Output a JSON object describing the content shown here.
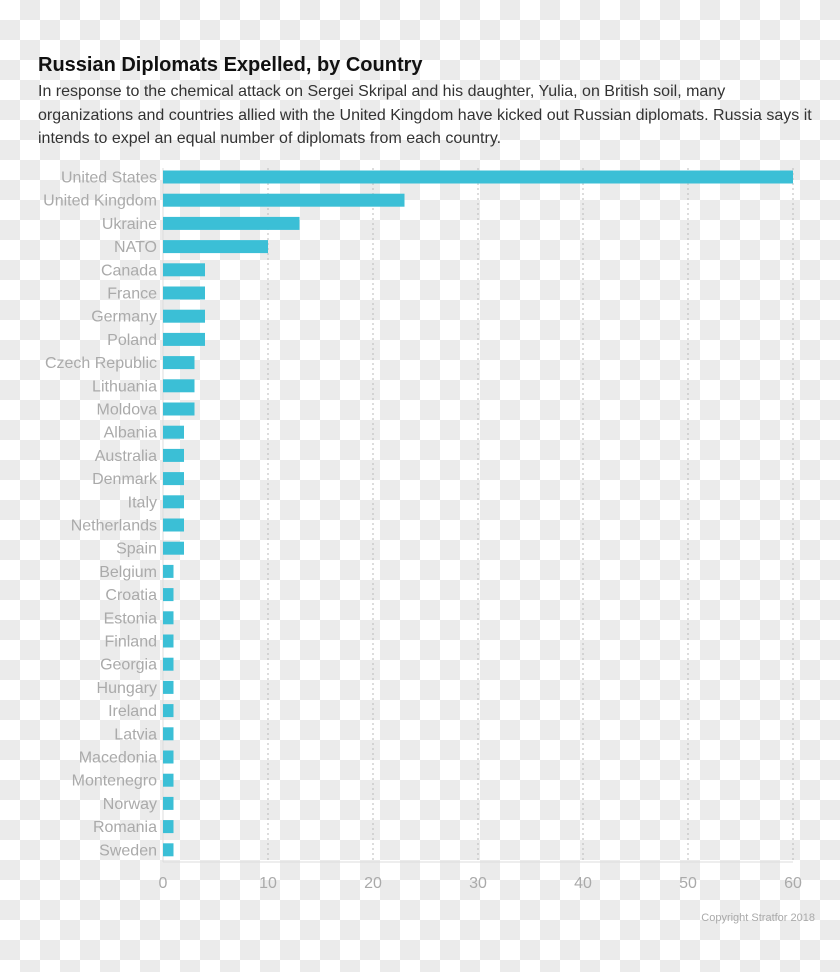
{
  "chart_data": {
    "type": "bar",
    "orientation": "horizontal",
    "title": "Russian Diplomats Expelled, by Country",
    "subtitle": "In response to the chemical attack on Sergei Skripal and his daughter, Yulia, on British soil, many organizations and countries allied with the United Kingdom have kicked out Russian diplomats. Russia says it intends to expel an equal number of diplomats from each country.",
    "categories": [
      "United States",
      "United Kingdom",
      "Ukraine",
      "NATO",
      "Canada",
      "France",
      "Germany",
      "Poland",
      "Czech Republic",
      "Lithuania",
      "Moldova",
      "Albania",
      "Australia",
      "Denmark",
      "Italy",
      "Netherlands",
      "Spain",
      "Belgium",
      "Croatia",
      "Estonia",
      "Finland",
      "Georgia",
      "Hungary",
      "Ireland",
      "Latvia",
      "Macedonia",
      "Montenegro",
      "Norway",
      "Romania",
      "Sweden"
    ],
    "values": [
      60,
      23,
      13,
      10,
      4,
      4,
      4,
      4,
      3,
      3,
      3,
      2,
      2,
      2,
      2,
      2,
      2,
      1,
      1,
      1,
      1,
      1,
      1,
      1,
      1,
      1,
      1,
      1,
      1,
      1
    ],
    "xlim": [
      0,
      60
    ],
    "xticks": [
      "0",
      "10",
      "20",
      "30",
      "40",
      "50",
      "60"
    ],
    "grid": "vertical dotted",
    "bar_color": "#3bbfd6",
    "xlabel": "",
    "ylabel": ""
  },
  "copyright": "Copyright Stratfor 2018"
}
